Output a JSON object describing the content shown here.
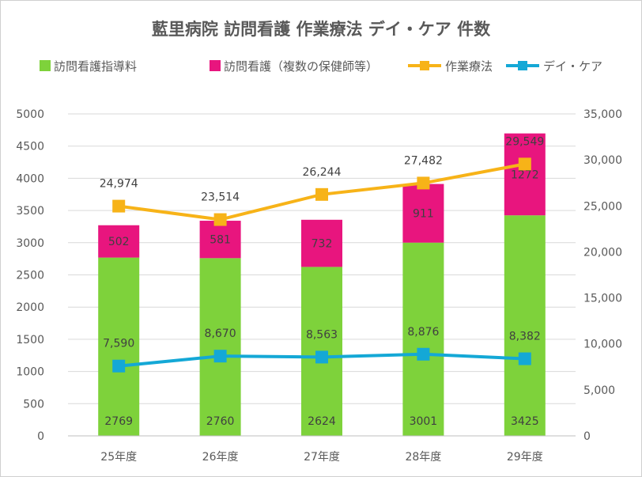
{
  "chart_data": {
    "type": "bar",
    "title": "藍里病院  訪問看護  作業療法  デイ・ケア  件数",
    "categories": [
      "25年度",
      "26年度",
      "27年度",
      "28年度",
      "29年度"
    ],
    "stack_series": [
      {
        "name": "訪問看護指導料",
        "values": [
          2769,
          2760,
          2624,
          3001,
          3425
        ],
        "color": "#7ED23B"
      },
      {
        "name": "訪問看護（複数の保健師等）",
        "values": [
          502,
          581,
          732,
          911,
          1272
        ],
        "color": "#E8157E"
      }
    ],
    "line_series": [
      {
        "name": "作業療法",
        "values": [
          24974,
          23514,
          26244,
          27482,
          29549
        ],
        "labels": [
          "24,974",
          "23,514",
          "26,244",
          "27,482",
          "29,549"
        ],
        "color": "#F7B318",
        "axis": "right"
      },
      {
        "name": "デイ・ケア",
        "values": [
          7590,
          8670,
          8563,
          8876,
          8382
        ],
        "labels": [
          "7,590",
          "8,670",
          "8,563",
          "8,876",
          "8,382"
        ],
        "color": "#14A8D6",
        "axis": "right"
      }
    ],
    "y_left": {
      "min": 0,
      "max": 5000,
      "ticks": [
        "0",
        "500",
        "1000",
        "1500",
        "2000",
        "2500",
        "3000",
        "3500",
        "4000",
        "4500",
        "5000"
      ]
    },
    "y_right": {
      "min": 0,
      "max": 35000,
      "ticks": [
        "0",
        "5,000",
        "10,000",
        "15,000",
        "20,000",
        "25,000",
        "30,000",
        "35,000"
      ]
    },
    "grid": true,
    "legend_position": "top"
  }
}
